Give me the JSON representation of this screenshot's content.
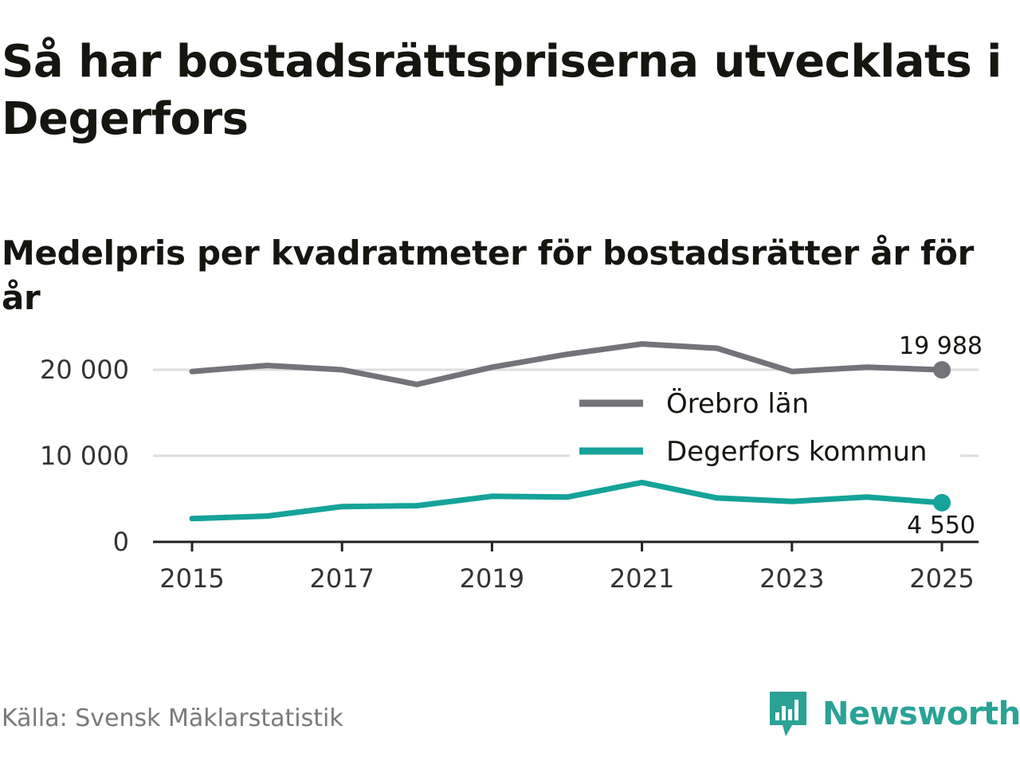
{
  "header": {
    "title": "Så har bostadsrättspriserna utvecklats i Degerfors",
    "subtitle": "Medelpris per kvadratmeter för bostadsrätter år för år"
  },
  "footer": {
    "source": "Källa: Svensk Mäklarstatistik",
    "brand": "Newsworthy"
  },
  "colors": {
    "grey_series": "#74737a",
    "teal_series": "#15a399",
    "grid": "#dddddd",
    "axis": "#222222",
    "brand": "#2aa296"
  },
  "chart_data": {
    "type": "line",
    "title": "Medelpris per kvadratmeter för bostadsrätter år för år",
    "x": [
      2015,
      2016,
      2017,
      2018,
      2019,
      2020,
      2021,
      2022,
      2023,
      2024,
      2025
    ],
    "x_ticks": [
      2015,
      2017,
      2019,
      2021,
      2023,
      2025
    ],
    "x_tick_labels": [
      "2015",
      "2017",
      "2019",
      "2021",
      "2023",
      "2025"
    ],
    "xlim": [
      2014.5,
      2025.5
    ],
    "ylim": [
      0,
      22000
    ],
    "y_ticks": [
      0,
      10000,
      20000
    ],
    "y_tick_labels": [
      "0",
      "10 000",
      "20 000"
    ],
    "grid": true,
    "legend_position": "center-right",
    "series": [
      {
        "name": "Örebro län",
        "color": "#74737a",
        "values": [
          19800,
          20500,
          20000,
          18300,
          20300,
          21800,
          23000,
          22500,
          19800,
          20300,
          19988
        ],
        "end_label": "19 988"
      },
      {
        "name": "Degerfors kommun",
        "color": "#15a399",
        "values": [
          2700,
          3000,
          4100,
          4200,
          5300,
          5200,
          6900,
          5100,
          4700,
          5200,
          4550
        ],
        "end_label": "4 550"
      }
    ]
  }
}
